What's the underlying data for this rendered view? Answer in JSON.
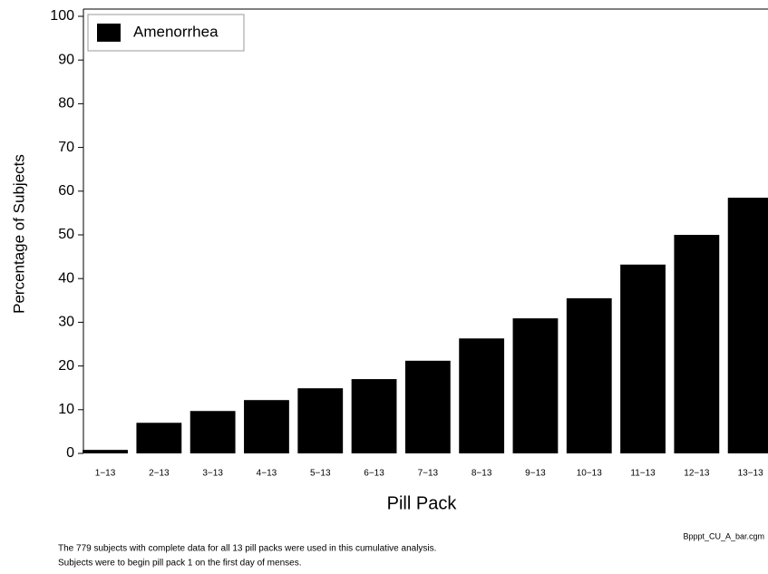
{
  "chart_data": {
    "type": "bar",
    "x_label": "Pill Pack",
    "y_label": "Percentage of Subjects",
    "categories": [
      "1−13",
      "2−13",
      "3−13",
      "4−13",
      "5−13",
      "6−13",
      "7−13",
      "8−13",
      "9−13",
      "10−13",
      "11−13",
      "12−13",
      "13−13"
    ],
    "series": [
      {
        "name": "Amenorrhea",
        "color": "#000000",
        "values": [
          0.8,
          7,
          9.7,
          12.2,
          14.9,
          17,
          21.2,
          26.3,
          30.9,
          35.5,
          43.2,
          50,
          58.5
        ]
      }
    ],
    "ylim": [
      0,
      100
    ],
    "yticks": [
      0,
      10,
      20,
      30,
      40,
      50,
      60,
      70,
      80,
      90,
      100
    ],
    "legend": "top-left",
    "footnotes": [
      "The 779 subjects with complete data for all 13 pill packs were used in this cumulative analysis.",
      "Subjects were to begin pill pack 1 on the first day of menses."
    ],
    "file_name": "Bpppt_CU_A_bar.cgm"
  }
}
